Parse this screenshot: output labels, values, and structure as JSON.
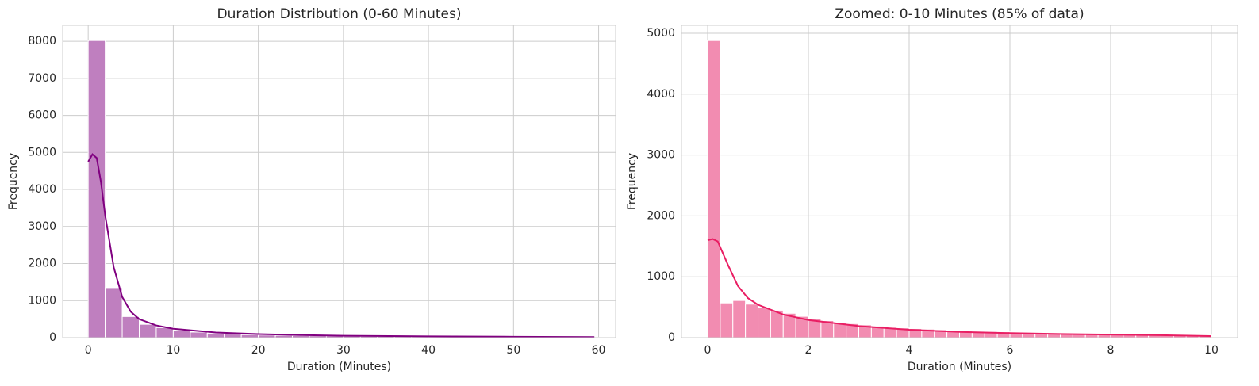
{
  "chart_data": [
    {
      "type": "histogram",
      "title": "Duration Distribution (0-60 Minutes)",
      "xlabel": "Duration (Minutes)",
      "ylabel": "Frequency",
      "bins": [
        0,
        2,
        4,
        6,
        8,
        10,
        12,
        14,
        16,
        18,
        20,
        22,
        24,
        26,
        28,
        30,
        32,
        34,
        36,
        38,
        40,
        42,
        44,
        46,
        48,
        50,
        52,
        54,
        56,
        58,
        60
      ],
      "values": [
        8020,
        1350,
        570,
        360,
        270,
        200,
        150,
        120,
        100,
        80,
        70,
        60,
        55,
        50,
        45,
        40,
        35,
        32,
        30,
        28,
        25,
        22,
        20,
        18,
        16,
        15,
        13,
        12,
        10,
        8
      ],
      "color": "#bf7fbf",
      "kde": {
        "x": [
          0,
          0.5,
          1,
          1.5,
          2,
          3,
          4,
          5,
          6,
          8,
          10,
          15,
          20,
          25,
          30,
          40,
          50,
          59.5
        ],
        "values": [
          4750,
          4950,
          4850,
          4200,
          3300,
          1900,
          1100,
          700,
          500,
          330,
          240,
          140,
          95,
          70,
          50,
          35,
          25,
          15
        ],
        "color": "#800080"
      },
      "xlim": [
        -3,
        62
      ],
      "ylim": [
        0,
        8430
      ],
      "xticks": [
        0,
        10,
        20,
        30,
        40,
        50,
        60
      ],
      "yticks": [
        0,
        1000,
        2000,
        3000,
        4000,
        5000,
        6000,
        7000,
        8000
      ],
      "grid": true
    },
    {
      "type": "histogram",
      "title": "Zoomed: 0-10 Minutes (85% of data)",
      "xlabel": "Duration (Minutes)",
      "ylabel": "Frequency",
      "bins": [
        0,
        0.25,
        0.5,
        0.75,
        1,
        1.25,
        1.5,
        1.75,
        2,
        2.25,
        2.5,
        2.75,
        3,
        3.25,
        3.5,
        3.75,
        4,
        4.25,
        4.5,
        4.75,
        5,
        5.25,
        5.5,
        5.75,
        6,
        6.25,
        6.5,
        6.75,
        7,
        7.25,
        7.5,
        7.75,
        8,
        8.25,
        8.5,
        8.75,
        9,
        9.25,
        9.5,
        9.75,
        10
      ],
      "values": [
        4880,
        570,
        610,
        550,
        500,
        450,
        400,
        350,
        310,
        280,
        250,
        230,
        210,
        190,
        170,
        160,
        150,
        140,
        130,
        120,
        110,
        105,
        100,
        95,
        90,
        85,
        80,
        75,
        72,
        70,
        65,
        62,
        60,
        58,
        55,
        52,
        50,
        48,
        45,
        42
      ],
      "color": "#f28cb1",
      "kde": {
        "x": [
          0,
          0.1,
          0.2,
          0.4,
          0.6,
          0.8,
          1,
          1.5,
          2,
          3,
          4,
          5,
          6,
          7,
          8,
          9,
          10
        ],
        "values": [
          1600,
          1620,
          1580,
          1200,
          850,
          650,
          540,
          380,
          290,
          190,
          130,
          95,
          75,
          60,
          50,
          40,
          25
        ],
        "color": "#e91e63"
      },
      "xlim": [
        -0.52,
        10.52
      ],
      "ylim": [
        0,
        5130
      ],
      "xticks": [
        0,
        2,
        4,
        6,
        8,
        10
      ],
      "yticks": [
        0,
        1000,
        2000,
        3000,
        4000,
        5000
      ],
      "grid": true
    }
  ]
}
